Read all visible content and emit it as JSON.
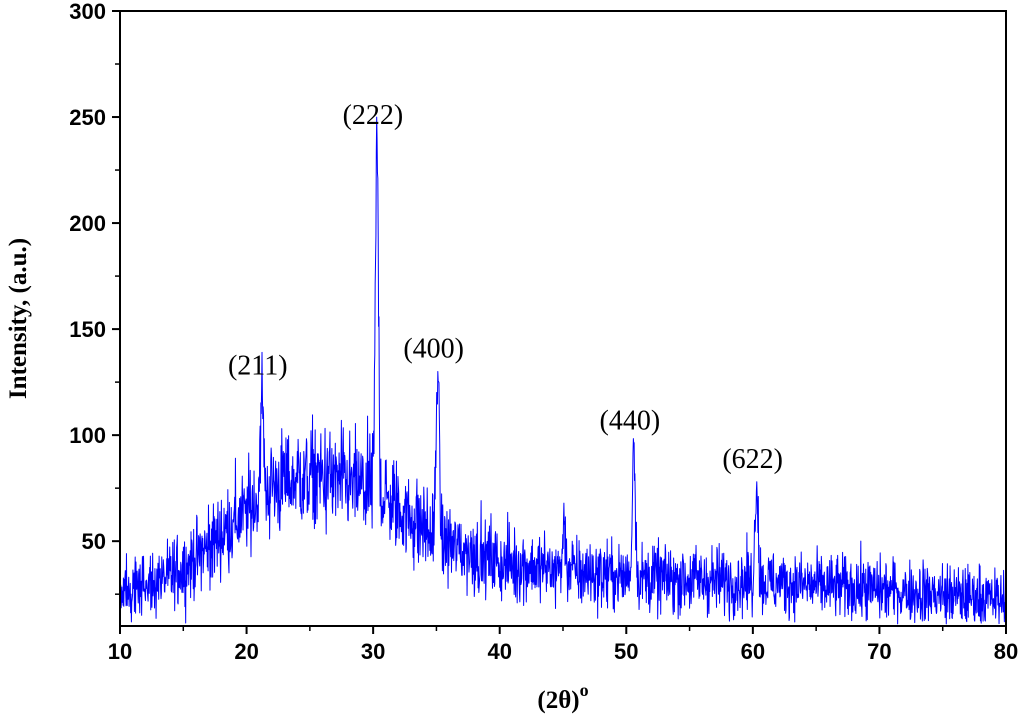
{
  "chart_data": {
    "type": "line",
    "xlabel": "(2θ)",
    "xlabel_sup": "o",
    "ylabel": "Intensity, (a.u.)",
    "xlim": [
      10,
      80
    ],
    "ylim": [
      10,
      300
    ],
    "xticks": [
      10,
      20,
      30,
      40,
      50,
      60,
      70,
      80
    ],
    "yticks": [
      50,
      100,
      150,
      200,
      250,
      300
    ],
    "line_color": "#0000ff",
    "grid": false,
    "legend": "none",
    "baseline": [
      [
        10,
        26
      ],
      [
        12,
        28
      ],
      [
        14,
        33
      ],
      [
        16,
        42
      ],
      [
        18,
        53
      ],
      [
        20,
        64
      ],
      [
        22,
        76
      ],
      [
        24,
        80
      ],
      [
        26,
        80
      ],
      [
        28,
        77
      ],
      [
        29.5,
        75
      ],
      [
        31,
        70
      ],
      [
        32.5,
        63
      ],
      [
        34,
        56
      ],
      [
        35.5,
        50
      ],
      [
        37,
        46
      ],
      [
        40,
        40
      ],
      [
        45,
        36
      ],
      [
        50,
        33
      ],
      [
        55,
        32
      ],
      [
        60,
        31
      ],
      [
        65,
        29
      ],
      [
        70,
        27
      ],
      [
        75,
        25
      ],
      [
        80,
        22
      ]
    ],
    "peaks": [
      {
        "x": 21.2,
        "y": 122,
        "label": "(211)"
      },
      {
        "x": 30.3,
        "y": 240,
        "label": "(222)"
      },
      {
        "x": 35.1,
        "y": 130,
        "label": "(400)"
      },
      {
        "x": 45.1,
        "y": 58,
        "label": ""
      },
      {
        "x": 50.6,
        "y": 96,
        "label": "(440)"
      },
      {
        "x": 60.3,
        "y": 78,
        "label": "(622)"
      }
    ],
    "annotations": [
      "(211)",
      "(222)",
      "(400)",
      "(440)",
      "(622)"
    ]
  }
}
